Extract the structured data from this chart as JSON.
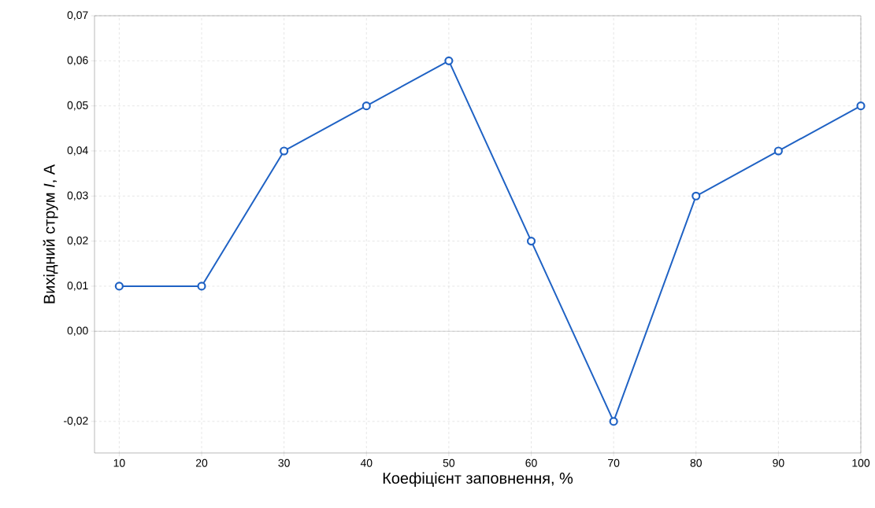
{
  "chart_data": {
    "type": "line",
    "xlabel": "Коефіцієнт заповнення, %",
    "ylabel": "Вихідний струм *I*, А",
    "x": [
      10,
      20,
      30,
      40,
      50,
      60,
      70,
      80,
      90,
      100
    ],
    "series": [
      {
        "color": "#1f62c4",
        "values": [
          0.01,
          0.01,
          0.04,
          0.05,
          0.06,
          0.02,
          -0.02,
          0.03,
          0.04,
          0.05
        ]
      }
    ],
    "xlim": [
      7,
      100
    ],
    "ylim": [
      -0.027,
      0.07
    ],
    "xticks": [
      10,
      20,
      30,
      40,
      50,
      60,
      70,
      80,
      90,
      100
    ],
    "yticks": [
      {
        "value": -0.02,
        "label": "-0,02"
      },
      {
        "value": 0,
        "label": "0,00"
      },
      {
        "value": 0.01,
        "label": "0,01"
      },
      {
        "value": 0.02,
        "label": "0,02"
      },
      {
        "value": 0.03,
        "label": "0,03"
      },
      {
        "value": 0.04,
        "label": "0,04"
      },
      {
        "value": 0.05,
        "label": "0,05"
      },
      {
        "value": 0.06,
        "label": "0,06"
      },
      {
        "value": 0.07,
        "label": "0,07"
      }
    ],
    "ref_lines": [
      {
        "axis": "y",
        "value": 0,
        "color": "#888888"
      }
    ],
    "grid": true,
    "marker": "circle",
    "line_style": "solid"
  }
}
